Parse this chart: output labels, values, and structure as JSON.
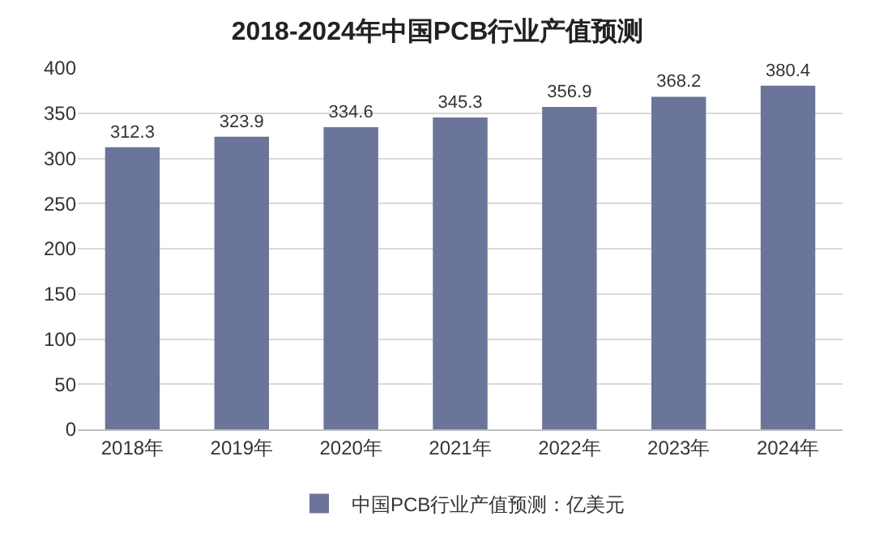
{
  "chart_data": {
    "type": "bar",
    "title": "2018-2024年中国PCB行业产值预测",
    "categories": [
      "2018年",
      "2019年",
      "2020年",
      "2021年",
      "2022年",
      "2023年",
      "2024年"
    ],
    "series": [
      {
        "name": "中国PCB行业产值预测：亿美元",
        "color": "#6b7599",
        "values": [
          312.3,
          323.9,
          334.6,
          345.3,
          356.9,
          368.2,
          380.4
        ]
      }
    ],
    "ylim": [
      0,
      400
    ],
    "yticks": [
      0,
      50,
      100,
      150,
      200,
      250,
      300,
      350,
      400
    ],
    "grid": "y",
    "legend": "bottom",
    "data_labels": true
  }
}
